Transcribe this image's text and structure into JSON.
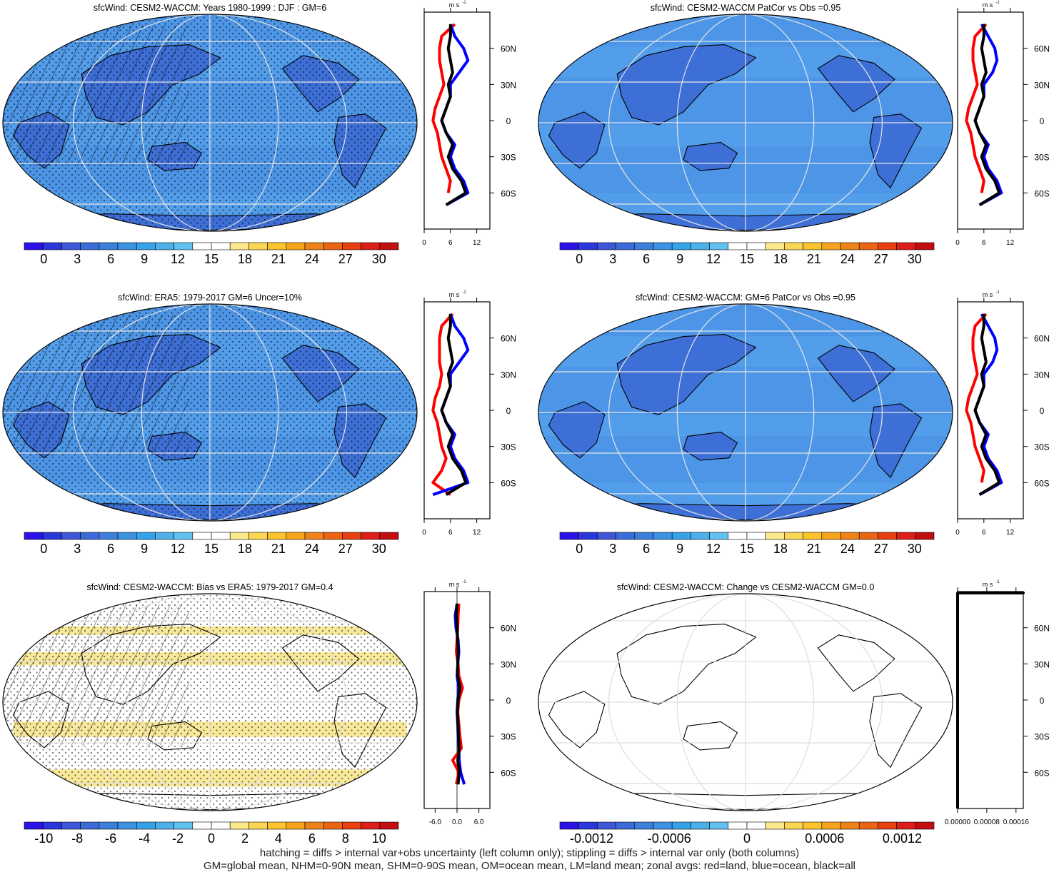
{
  "colors": {
    "ocean_field": "#4d95e6",
    "land_field": "#3e6fd6",
    "blue_field_dark": "#3555c8",
    "bias_yellow": "#f8e89a",
    "bias_blue": "#a6d7f2",
    "graticule": "#dddddd",
    "coast": "#000000",
    "zonal_land": "#ff0000",
    "zonal_ocean": "#0000ff",
    "zonal_all": "#000000",
    "wind_colors": [
      "#2c11e8",
      "#2b36db",
      "#3e57d9",
      "#3b6bd8",
      "#3c7fdc",
      "#3d93e3",
      "#35a3ea",
      "#4cb0ea",
      "#61c1ef",
      "#ffffff",
      "#ffffff",
      "#fde98c",
      "#fbd554",
      "#fbc42c",
      "#f7a51c",
      "#ef8317",
      "#ec6314",
      "#e8400f",
      "#dd1e18",
      "#c20d11"
    ],
    "diff_colors": [
      "#2c11e8",
      "#2b36db",
      "#3e57d9",
      "#3b6bd8",
      "#3c7fdc",
      "#3d93e3",
      "#35a3ea",
      "#4cb0ea",
      "#61c1ef",
      "#ffffff",
      "#ffffff",
      "#fde98c",
      "#fbd554",
      "#fbc42c",
      "#f7a51c",
      "#ef8317",
      "#ec6314",
      "#e8400f",
      "#dd1e18",
      "#c20d11"
    ]
  },
  "panels": [
    {
      "id": "model-djf",
      "title": "sfcWind: CESM2-WACCM: Years 1980-1999 : DJF : GM=6",
      "field": "wind",
      "hatched": true,
      "stippled": true,
      "colorbar_labels": [
        "0",
        "3",
        "6",
        "9",
        "12",
        "15",
        "18",
        "21",
        "24",
        "27",
        "30"
      ],
      "zonal_xticks": [
        "0",
        "6",
        "12"
      ]
    },
    {
      "id": "model-patcor",
      "title": "sfcWind: CESM2-WACCM PatCor vs Obs =0.95",
      "field": "wind",
      "hatched": false,
      "stippled": false,
      "colorbar_labels": [
        "0",
        "3",
        "6",
        "9",
        "12",
        "15",
        "18",
        "21",
        "24",
        "27",
        "30"
      ],
      "zonal_xticks": [
        "0",
        "6",
        "12"
      ]
    },
    {
      "id": "obs-era5",
      "title": "sfcWind: ERA5: 1979-2017 GM=6 Uncer=10%",
      "field": "wind",
      "hatched": true,
      "stippled": true,
      "colorbar_labels": [
        "0",
        "3",
        "6",
        "9",
        "12",
        "15",
        "18",
        "21",
        "24",
        "27",
        "30"
      ],
      "zonal_xticks": [
        "0",
        "6",
        "12"
      ]
    },
    {
      "id": "model-gm-patcor",
      "title": "sfcWind: CESM2-WACCM: GM=6 PatCor vs Obs =0.95",
      "field": "wind",
      "hatched": false,
      "stippled": false,
      "colorbar_labels": [
        "0",
        "3",
        "6",
        "9",
        "12",
        "15",
        "18",
        "21",
        "24",
        "27",
        "30"
      ],
      "zonal_xticks": [
        "0",
        "6",
        "12"
      ]
    },
    {
      "id": "bias",
      "title": "sfcWind: CESM2-WACCM: Bias vs ERA5: 1979-2017 GM=0.4",
      "field": "bias",
      "hatched": true,
      "stippled": true,
      "colorbar_labels": [
        "-10",
        "-8",
        "-6",
        "-4",
        "-2",
        "0",
        "2",
        "4",
        "6",
        "8",
        "10"
      ],
      "zonal_xticks": [
        "-6.0",
        "0.0",
        "6.0"
      ]
    },
    {
      "id": "change",
      "title": "sfcWind: CESM2-WACCM: Change vs CESM2-WACCM GM=0.0",
      "field": "none",
      "hatched": false,
      "stippled": false,
      "colorbar_labels": [
        "-0.0012",
        "-0.0006",
        "0",
        "0.0006",
        "0.0012"
      ],
      "zonal_xticks": [
        "0.00000",
        "0.00008",
        "0.00016"
      ]
    }
  ],
  "zonal_axis": {
    "unit_label": "m s",
    "unit_exponent": "-1",
    "lat_labels": [
      "60N",
      "30N",
      "0",
      "30S",
      "60S"
    ]
  },
  "chart_data": [
    {
      "type": "heatmap",
      "title": "sfcWind: CESM2-WACCM: Years 1980-1999 : DJF : GM=6",
      "zlim": [
        0,
        30
      ],
      "colorbar_ticks": [
        0,
        3,
        6,
        9,
        12,
        15,
        18,
        21,
        24,
        27,
        30
      ],
      "zonal_mean": {
        "type": "line",
        "xlim": [
          0,
          15
        ],
        "xticks": [
          0,
          6,
          12
        ],
        "ylabels": [
          "60N",
          "30N",
          "0",
          "30S",
          "60S"
        ],
        "series": [
          {
            "name": "land",
            "lat": [
              80,
              70,
              60,
              50,
              40,
              30,
              20,
              10,
              0,
              -10,
              -20,
              -30,
              -40,
              -50,
              -60
            ],
            "values": [
              7,
              4,
              3.5,
              3.5,
              4,
              4.5,
              3.5,
              2.5,
              2,
              3,
              3.5,
              4,
              5,
              6,
              5.5
            ]
          },
          {
            "name": "ocean",
            "lat": [
              80,
              70,
              60,
              50,
              40,
              30,
              20,
              10,
              0,
              -10,
              -20,
              -30,
              -40,
              -50,
              -60,
              -70
            ],
            "values": [
              6,
              7,
              9,
              10,
              8,
              6,
              6,
              5,
              4,
              5,
              7,
              6,
              7,
              9,
              10,
              5
            ]
          },
          {
            "name": "all",
            "lat": [
              80,
              70,
              60,
              50,
              40,
              30,
              20,
              10,
              0,
              -10,
              -20,
              -30,
              -40,
              -50,
              -60,
              -70
            ],
            "values": [
              6,
              6,
              5.5,
              6,
              6.5,
              5.5,
              6,
              5,
              4,
              5,
              6.5,
              5.5,
              6.5,
              8.5,
              9.5,
              5
            ]
          }
        ]
      }
    },
    {
      "type": "heatmap",
      "title": "sfcWind: CESM2-WACCM PatCor vs Obs =0.95",
      "zlim": [
        0,
        30
      ],
      "colorbar_ticks": [
        0,
        3,
        6,
        9,
        12,
        15,
        18,
        21,
        24,
        27,
        30
      ],
      "zonal_mean": {
        "type": "line",
        "xlim": [
          0,
          15
        ],
        "xticks": [
          0,
          6,
          12
        ],
        "ylabels": [
          "60N",
          "30N",
          "0",
          "30S",
          "60S"
        ],
        "series": [
          {
            "name": "land",
            "lat": [
              80,
              70,
              60,
              50,
              40,
              30,
              20,
              10,
              0,
              -10,
              -20,
              -30,
              -40,
              -50,
              -60
            ],
            "values": [
              6.5,
              4,
              3.5,
              3.5,
              4,
              4.5,
              3.5,
              2.5,
              2,
              3,
              3.5,
              4,
              5,
              6,
              5.5
            ]
          },
          {
            "name": "ocean",
            "lat": [
              80,
              70,
              60,
              50,
              40,
              30,
              20,
              10,
              0,
              -10,
              -20,
              -30,
              -40,
              -50,
              -60,
              -70
            ],
            "values": [
              5.5,
              7,
              8.5,
              9,
              8,
              6,
              6,
              5,
              4,
              5,
              7,
              6,
              7,
              9,
              10,
              5
            ]
          },
          {
            "name": "all",
            "lat": [
              80,
              70,
              60,
              50,
              40,
              30,
              20,
              10,
              0,
              -10,
              -20,
              -30,
              -40,
              -50,
              -60,
              -70
            ],
            "values": [
              6,
              6,
              5.5,
              6,
              6.5,
              5.5,
              6,
              5,
              4,
              5,
              6.5,
              5.5,
              6.5,
              8.5,
              9.5,
              5
            ]
          }
        ]
      }
    },
    {
      "type": "heatmap",
      "title": "sfcWind: ERA5: 1979-2017 GM=6 Uncer=10%",
      "zlim": [
        0,
        30
      ],
      "colorbar_ticks": [
        0,
        3,
        6,
        9,
        12,
        15,
        18,
        21,
        24,
        27,
        30
      ],
      "zonal_mean": {
        "type": "line",
        "xlim": [
          0,
          15
        ],
        "xticks": [
          0,
          6,
          12
        ],
        "ylabels": [
          "60N",
          "30N",
          "0",
          "30S",
          "60S"
        ],
        "series": [
          {
            "name": "land",
            "lat": [
              80,
              70,
              60,
              50,
              40,
              30,
              20,
              10,
              0,
              -10,
              -20,
              -30,
              -40,
              -50,
              -60,
              -70
            ],
            "values": [
              6.5,
              4,
              3.5,
              3.5,
              3.5,
              4,
              3.5,
              2.5,
              2,
              3,
              3.5,
              4,
              5,
              4,
              2,
              6
            ]
          },
          {
            "name": "ocean",
            "lat": [
              80,
              70,
              60,
              50,
              40,
              30,
              20,
              10,
              0,
              -10,
              -20,
              -30,
              -40,
              -50,
              -60,
              -70
            ],
            "values": [
              6,
              7,
              9,
              10,
              8,
              6,
              6,
              5,
              4,
              5,
              7,
              6,
              7,
              9,
              10,
              2
            ]
          },
          {
            "name": "all",
            "lat": [
              80,
              70,
              60,
              50,
              40,
              30,
              20,
              10,
              0,
              -10,
              -20,
              -30,
              -40,
              -50,
              -60,
              -70
            ],
            "values": [
              6,
              6,
              5.5,
              6,
              6.5,
              5.5,
              6,
              5,
              4,
              5,
              6.5,
              5.5,
              6.5,
              8.5,
              9.5,
              5
            ]
          }
        ]
      }
    },
    {
      "type": "heatmap",
      "title": "sfcWind: CESM2-WACCM: GM=6 PatCor vs Obs =0.95",
      "zlim": [
        0,
        30
      ],
      "colorbar_ticks": [
        0,
        3,
        6,
        9,
        12,
        15,
        18,
        21,
        24,
        27,
        30
      ],
      "zonal_mean": {
        "type": "line",
        "xlim": [
          0,
          15
        ],
        "xticks": [
          0,
          6,
          12
        ],
        "ylabels": [
          "60N",
          "30N",
          "0",
          "30S",
          "60S"
        ],
        "series": [
          {
            "name": "land",
            "lat": [
              80,
              70,
              60,
              50,
              40,
              30,
              20,
              10,
              0,
              -10,
              -20,
              -30,
              -40,
              -50,
              -60
            ],
            "values": [
              6.5,
              4,
              3.5,
              3.5,
              4,
              4.5,
              3.5,
              2.5,
              2,
              3,
              3.5,
              4,
              5,
              6,
              5.5
            ]
          },
          {
            "name": "ocean",
            "lat": [
              80,
              70,
              60,
              50,
              40,
              30,
              20,
              10,
              0,
              -10,
              -20,
              -30,
              -40,
              -50,
              -60,
              -70
            ],
            "values": [
              5.5,
              7,
              8.5,
              9,
              8,
              6,
              6,
              5,
              4,
              5,
              7,
              6,
              7,
              9,
              10,
              5
            ]
          },
          {
            "name": "all",
            "lat": [
              80,
              70,
              60,
              50,
              40,
              30,
              20,
              10,
              0,
              -10,
              -20,
              -30,
              -40,
              -50,
              -60,
              -70
            ],
            "values": [
              6,
              6,
              5.5,
              6,
              6.5,
              5.5,
              6,
              5,
              4,
              5,
              6.5,
              5.5,
              6.5,
              8.5,
              9.5,
              5
            ]
          }
        ]
      }
    },
    {
      "type": "heatmap",
      "title": "sfcWind: CESM2-WACCM: Bias vs ERA5: 1979-2017 GM=0.4",
      "zlim": [
        -11,
        11
      ],
      "colorbar_ticks": [
        -10,
        -8,
        -6,
        -4,
        -2,
        0,
        2,
        4,
        6,
        8,
        10
      ],
      "zonal_mean": {
        "type": "line",
        "xlim": [
          -9,
          9
        ],
        "xticks": [
          -6,
          0,
          6
        ],
        "ylabels": [
          "60N",
          "30N",
          "0",
          "30S",
          "60S"
        ],
        "series": [
          {
            "name": "land",
            "lat": [
              80,
              70,
              60,
              50,
              40,
              30,
              20,
              10,
              0,
              -10,
              -20,
              -30,
              -40,
              -50,
              -60,
              -70
            ],
            "values": [
              0.5,
              0.3,
              0.2,
              0,
              -0.2,
              0.3,
              0.5,
              1.5,
              0.5,
              0.2,
              0.5,
              0.8,
              1.2,
              -1.2,
              0.5,
              -0.2
            ]
          },
          {
            "name": "ocean",
            "lat": [
              80,
              70,
              60,
              50,
              40,
              30,
              20,
              10,
              0,
              -10,
              -20,
              -30,
              -40,
              -50,
              -60,
              -70
            ],
            "values": [
              0,
              -0.5,
              -0.3,
              0.3,
              0.5,
              0.2,
              0,
              0.5,
              0.2,
              0,
              0.2,
              0.3,
              0.5,
              0.6,
              1,
              2
            ]
          },
          {
            "name": "all",
            "lat": [
              80,
              70,
              60,
              50,
              40,
              30,
              20,
              10,
              0,
              -10,
              -20,
              -30,
              -40,
              -50,
              -60,
              -70
            ],
            "values": [
              0,
              -0.2,
              0,
              0.2,
              0.3,
              0.2,
              0.2,
              0.8,
              0.3,
              0.1,
              0.3,
              0.4,
              0.6,
              0.2,
              0.6,
              0.3
            ]
          }
        ]
      }
    },
    {
      "type": "heatmap",
      "title": "sfcWind: CESM2-WACCM: Change vs CESM2-WACCM GM=0.0",
      "zlim": [
        -0.0015,
        0.0015
      ],
      "colorbar_ticks": [
        -0.0012,
        -0.0006,
        0,
        0.0006,
        0.0012
      ],
      "zonal_mean": {
        "type": "line",
        "xlim": [
          0,
          0.00018
        ],
        "xticks": [
          0,
          8e-05,
          0.00016
        ],
        "ylabels": [
          "60N",
          "30N",
          "0",
          "30S",
          "60S"
        ],
        "series": [
          {
            "name": "all",
            "lat": [
              90,
              -90
            ],
            "values": [
              0,
              0
            ]
          }
        ]
      }
    }
  ],
  "footnotes": [
    "hatching = diffs > internal var+obs uncertainty (left column only); stippling = diffs > internal var only (both columns)",
    "GM=global mean, NHM=0-90N mean, SHM=0-90S mean, OM=ocean mean, LM=land mean; zonal avgs: red=land, blue=ocean, black=all"
  ]
}
